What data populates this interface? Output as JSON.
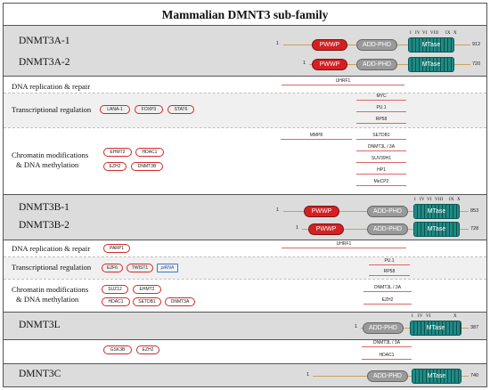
{
  "title": "Mammalian DMNT3 sub-family",
  "isoforms": {
    "a1": {
      "name": "DNMT3A-1",
      "start": "1",
      "end": "912"
    },
    "a2": {
      "name": "DNMT3A-2",
      "start": "1",
      "end": "720"
    },
    "b1": {
      "name": "DNMT3B-1",
      "start": "1",
      "end": "853"
    },
    "b2": {
      "name": "DNMT3B-2",
      "start": "1",
      "end": "728"
    },
    "l": {
      "name": "DNMT3L",
      "start": "1",
      "end": "387"
    },
    "c": {
      "name": "DMNT3C",
      "start": "1",
      "end": "740"
    }
  },
  "domains": {
    "pwwp": "PWWP",
    "add": "ADD-PHD",
    "mtase": "MTase"
  },
  "motifs": {
    "a": [
      "I",
      "IV",
      "VI",
      "VIII",
      "IX",
      "X"
    ],
    "b": [
      "I",
      "IV",
      "VI",
      "VIII",
      "IX",
      "X"
    ],
    "l": [
      "I",
      "IV",
      "VI",
      "X"
    ]
  },
  "categories": {
    "dna_rep": "DNA replication & repair",
    "transcr": "Transcriptional regulation",
    "chromatin_1": "Chromatin modifications",
    "chromatin_2": "& DNA methylation"
  },
  "a_partners": {
    "dna_rep": [
      "UHRF1"
    ],
    "transcr_pills": [
      "LANA-1",
      "FOXP3",
      "STAT6"
    ],
    "transcr_lines": [
      "MYC",
      "PU.1",
      "RP58"
    ],
    "chromatin_pills": [
      "EHMT2",
      "HDAC1",
      "EZH2",
      "DNMT3B"
    ],
    "chromatin_lines": [
      "MMP8",
      "SETDB1",
      "DNMT3L / 3A",
      "SUV39H1",
      "HP1",
      "MeCP2"
    ]
  },
  "b_partners": {
    "dna_rep_pills": [
      "PARP1"
    ],
    "dna_rep_lines": [
      "UHRF1"
    ],
    "transcr_pills": [
      "E2F6",
      "TWIST1"
    ],
    "transcr_rna": "piRNA",
    "transcr_lines": [
      "PU.1",
      "RP58"
    ],
    "chromatin_pills": [
      "SUZ12",
      "EHMT2",
      "HDAC1",
      "SETDB1",
      "DNMT3A"
    ],
    "chromatin_lines": [
      "DNMT3L / 3A",
      "EZH2"
    ]
  },
  "l_partners": {
    "pills": [
      "GSK3B",
      "EZH2"
    ],
    "lines": [
      "DNMT3L / 3A",
      "HDAC1"
    ]
  },
  "colors": {
    "pwwp": "#d52022",
    "add": "#9a9a9a",
    "mtase": "#1e8a84",
    "border": "#555555",
    "band": "#dcdcdc"
  }
}
